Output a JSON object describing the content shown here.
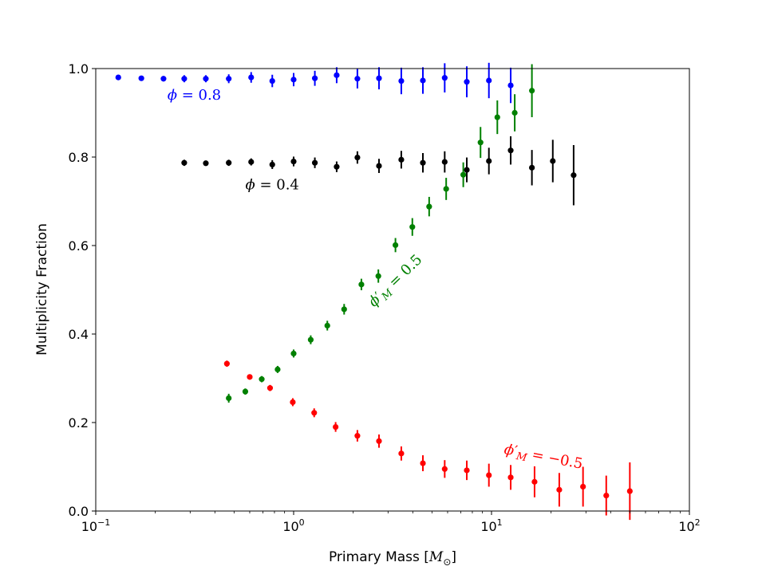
{
  "chart_data": {
    "type": "scatter",
    "title": "",
    "xlabel": "Primary Mass [M⊙]",
    "ylabel": "Multiplicity Fraction",
    "xscale": "log",
    "xlim": [
      0.1,
      100
    ],
    "ylim": [
      0.0,
      1.0
    ],
    "grid": false,
    "x_ticks": [
      {
        "value": 0.1,
        "base": "10",
        "exp": "−1"
      },
      {
        "value": 1,
        "base": "10",
        "exp": "0"
      },
      {
        "value": 10,
        "base": "10",
        "exp": "1"
      },
      {
        "value": 100,
        "base": "10",
        "exp": "2"
      }
    ],
    "y_ticks": [
      {
        "value": 0.0,
        "label": "0.0"
      },
      {
        "value": 0.2,
        "label": "0.2"
      },
      {
        "value": 0.4,
        "label": "0.4"
      },
      {
        "value": 0.6,
        "label": "0.6"
      },
      {
        "value": 0.8,
        "label": "0.8"
      },
      {
        "value": 1.0,
        "label": "1.0"
      }
    ],
    "series": [
      {
        "name": "phi = 0.8",
        "label": "ϕ = 0.8",
        "color": "#0000ff",
        "label_pos": {
          "x": 0.23,
          "y": 0.93,
          "rotate": 0
        },
        "points": [
          {
            "x": 0.13,
            "y": 0.98,
            "err": 0.005
          },
          {
            "x": 0.17,
            "y": 0.978,
            "err": 0.005
          },
          {
            "x": 0.22,
            "y": 0.977,
            "err": 0.006
          },
          {
            "x": 0.28,
            "y": 0.977,
            "err": 0.008
          },
          {
            "x": 0.36,
            "y": 0.977,
            "err": 0.008
          },
          {
            "x": 0.47,
            "y": 0.977,
            "err": 0.01
          },
          {
            "x": 0.61,
            "y": 0.98,
            "err": 0.012
          },
          {
            "x": 0.78,
            "y": 0.972,
            "err": 0.014
          },
          {
            "x": 1.0,
            "y": 0.975,
            "err": 0.015
          },
          {
            "x": 1.28,
            "y": 0.978,
            "err": 0.017
          },
          {
            "x": 1.65,
            "y": 0.985,
            "err": 0.018
          },
          {
            "x": 2.1,
            "y": 0.977,
            "err": 0.022
          },
          {
            "x": 2.7,
            "y": 0.978,
            "err": 0.025
          },
          {
            "x": 3.5,
            "y": 0.972,
            "err": 0.03
          },
          {
            "x": 4.5,
            "y": 0.973,
            "err": 0.03
          },
          {
            "x": 5.8,
            "y": 0.979,
            "err": 0.033
          },
          {
            "x": 7.5,
            "y": 0.97,
            "err": 0.035
          },
          {
            "x": 9.7,
            "y": 0.973,
            "err": 0.04
          },
          {
            "x": 12.5,
            "y": 0.962,
            "err": 0.04
          }
        ]
      },
      {
        "name": "phi = 0.4",
        "label": "ϕ = 0.4",
        "color": "#000000",
        "label_pos": {
          "x": 0.57,
          "y": 0.727,
          "rotate": 0
        },
        "points": [
          {
            "x": 0.28,
            "y": 0.787,
            "err": 0.007
          },
          {
            "x": 0.36,
            "y": 0.786,
            "err": 0.005
          },
          {
            "x": 0.47,
            "y": 0.787,
            "err": 0.007
          },
          {
            "x": 0.61,
            "y": 0.789,
            "err": 0.008
          },
          {
            "x": 0.78,
            "y": 0.783,
            "err": 0.01
          },
          {
            "x": 1.0,
            "y": 0.79,
            "err": 0.011
          },
          {
            "x": 1.28,
            "y": 0.787,
            "err": 0.012
          },
          {
            "x": 1.65,
            "y": 0.778,
            "err": 0.012
          },
          {
            "x": 2.1,
            "y": 0.799,
            "err": 0.014
          },
          {
            "x": 2.7,
            "y": 0.78,
            "err": 0.016
          },
          {
            "x": 3.5,
            "y": 0.794,
            "err": 0.02
          },
          {
            "x": 4.5,
            "y": 0.787,
            "err": 0.022
          },
          {
            "x": 5.8,
            "y": 0.789,
            "err": 0.024
          },
          {
            "x": 7.5,
            "y": 0.771,
            "err": 0.028
          },
          {
            "x": 9.7,
            "y": 0.791,
            "err": 0.03
          },
          {
            "x": 12.5,
            "y": 0.815,
            "err": 0.032
          },
          {
            "x": 16.0,
            "y": 0.776,
            "err": 0.04
          },
          {
            "x": 20.4,
            "y": 0.791,
            "err": 0.048
          },
          {
            "x": 26.0,
            "y": 0.759,
            "err": 0.068
          }
        ]
      },
      {
        "name": "phi'_M = 0.5",
        "label": "ϕ′M = 0.5",
        "color": "#008000",
        "label_pos": {
          "x": 2.55,
          "y": 0.46,
          "rotate": -44
        },
        "points": [
          {
            "x": 0.47,
            "y": 0.255,
            "err": 0.01
          },
          {
            "x": 0.57,
            "y": 0.27,
            "err": 0.007
          },
          {
            "x": 0.69,
            "y": 0.298,
            "err": 0.007
          },
          {
            "x": 0.83,
            "y": 0.32,
            "err": 0.008
          },
          {
            "x": 1.0,
            "y": 0.356,
            "err": 0.009
          },
          {
            "x": 1.22,
            "y": 0.387,
            "err": 0.01
          },
          {
            "x": 1.48,
            "y": 0.419,
            "err": 0.011
          },
          {
            "x": 1.8,
            "y": 0.456,
            "err": 0.012
          },
          {
            "x": 2.2,
            "y": 0.512,
            "err": 0.013
          },
          {
            "x": 2.68,
            "y": 0.531,
            "err": 0.015
          },
          {
            "x": 3.27,
            "y": 0.601,
            "err": 0.016
          },
          {
            "x": 3.98,
            "y": 0.642,
            "err": 0.02
          },
          {
            "x": 4.84,
            "y": 0.688,
            "err": 0.022
          },
          {
            "x": 5.9,
            "y": 0.728,
            "err": 0.025
          },
          {
            "x": 7.2,
            "y": 0.76,
            "err": 0.028
          },
          {
            "x": 8.8,
            "y": 0.833,
            "err": 0.035
          },
          {
            "x": 10.7,
            "y": 0.89,
            "err": 0.038
          },
          {
            "x": 13.1,
            "y": 0.9,
            "err": 0.042
          },
          {
            "x": 16.0,
            "y": 0.95,
            "err": 0.06
          }
        ]
      },
      {
        "name": "phi'_M = -0.5",
        "label": "ϕ′M = −0.5",
        "color": "#ff0000",
        "label_pos": {
          "x": 11.5,
          "y": 0.13,
          "rotate": 11
        },
        "points": [
          {
            "x": 0.46,
            "y": 0.333,
            "err": 0.007
          },
          {
            "x": 0.6,
            "y": 0.303,
            "err": 0.006
          },
          {
            "x": 0.76,
            "y": 0.278,
            "err": 0.007
          },
          {
            "x": 0.99,
            "y": 0.246,
            "err": 0.009
          },
          {
            "x": 1.27,
            "y": 0.222,
            "err": 0.01
          },
          {
            "x": 1.63,
            "y": 0.19,
            "err": 0.011
          },
          {
            "x": 2.1,
            "y": 0.17,
            "err": 0.013
          },
          {
            "x": 2.7,
            "y": 0.158,
            "err": 0.015
          },
          {
            "x": 3.5,
            "y": 0.13,
            "err": 0.016
          },
          {
            "x": 4.5,
            "y": 0.108,
            "err": 0.018
          },
          {
            "x": 5.8,
            "y": 0.095,
            "err": 0.02
          },
          {
            "x": 7.5,
            "y": 0.092,
            "err": 0.022
          },
          {
            "x": 9.7,
            "y": 0.081,
            "err": 0.026
          },
          {
            "x": 12.5,
            "y": 0.076,
            "err": 0.028
          },
          {
            "x": 16.5,
            "y": 0.066,
            "err": 0.035
          },
          {
            "x": 22.0,
            "y": 0.048,
            "err": 0.038
          },
          {
            "x": 29.0,
            "y": 0.055,
            "err": 0.045
          },
          {
            "x": 38.0,
            "y": 0.035,
            "err": 0.045
          },
          {
            "x": 50.0,
            "y": 0.045,
            "err": 0.065
          }
        ]
      }
    ]
  }
}
